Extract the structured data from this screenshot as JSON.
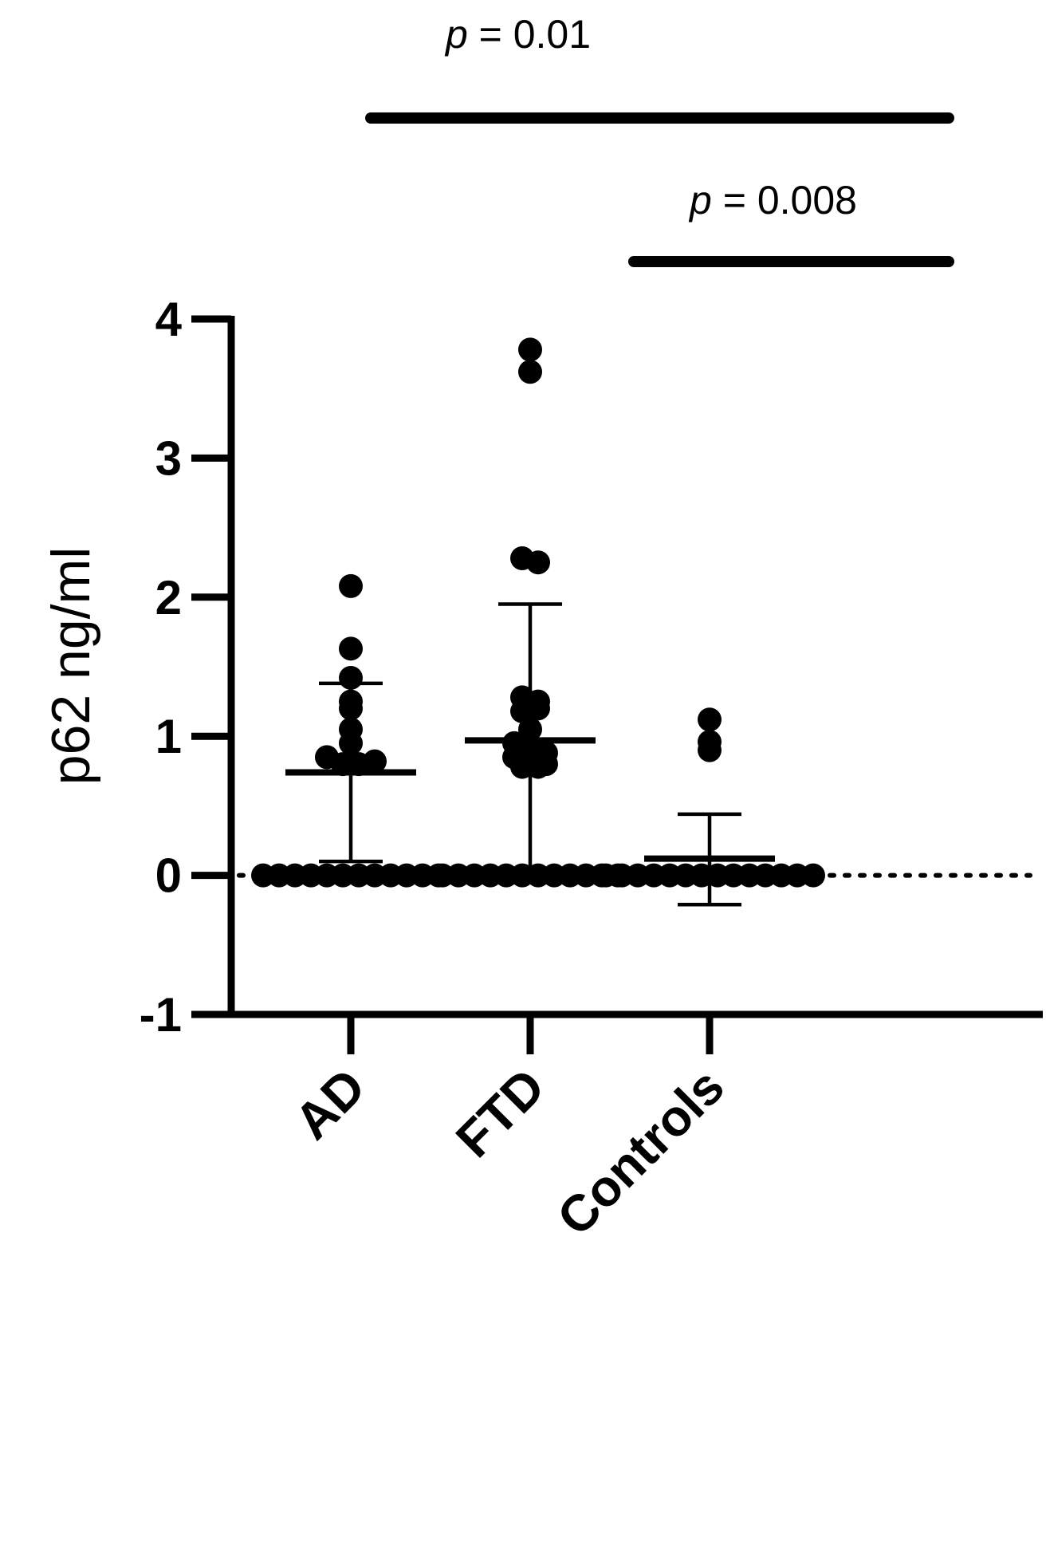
{
  "chart_data": {
    "type": "scatter",
    "ylabel": "p62 ng/ml",
    "xlabel": "",
    "title": "",
    "ylim": [
      -1,
      4
    ],
    "yticks": [
      "-1",
      "0",
      "1",
      "2",
      "3",
      "4"
    ],
    "reference_line": {
      "y": 0,
      "style": "dotted"
    },
    "categories": [
      "AD",
      "FTD",
      "Controls"
    ],
    "groups": [
      {
        "name": "AD",
        "mean": 0.74,
        "sd_upper": 1.38,
        "sd_lower": 0.1,
        "points": [
          2.08,
          1.63,
          1.42,
          1.25,
          1.2,
          1.05,
          0.95,
          0.85,
          0.8,
          0.8,
          0.82,
          0,
          0,
          0,
          0,
          0,
          0,
          0,
          0,
          0,
          0,
          0,
          0
        ]
      },
      {
        "name": "FTD",
        "mean": 0.97,
        "sd_upper": 1.95,
        "sd_lower": 0.0,
        "points": [
          3.78,
          3.62,
          2.28,
          2.25,
          1.28,
          1.25,
          1.18,
          1.2,
          1.05,
          0.95,
          0.9,
          0.88,
          0.85,
          0.8,
          0.78,
          0.8,
          0.78,
          0,
          0,
          0,
          0,
          0,
          0,
          0,
          0,
          0,
          0,
          0,
          0
        ]
      },
      {
        "name": "Controls",
        "mean": 0.12,
        "sd_upper": 0.44,
        "sd_lower": -0.21,
        "points": [
          1.12,
          0.96,
          0.9,
          0,
          0,
          0,
          0,
          0,
          0,
          0,
          0,
          0,
          0,
          0,
          0,
          0,
          0
        ]
      }
    ],
    "comparisons": [
      {
        "from": "AD",
        "to": "Controls",
        "p_symbol": "p",
        "p_text": " = 0.01"
      },
      {
        "from": "FTD",
        "to": "Controls",
        "p_symbol": "p",
        "p_text": " = 0.008"
      }
    ]
  }
}
